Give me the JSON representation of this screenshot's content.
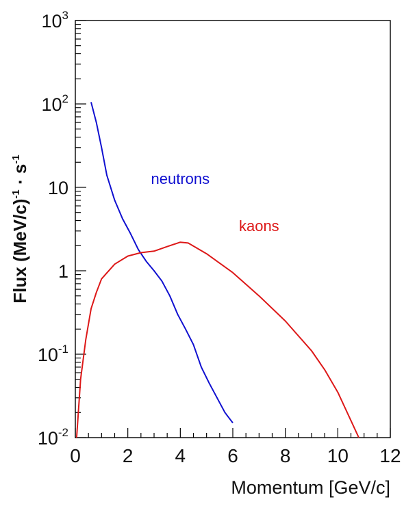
{
  "chart_data": {
    "type": "line",
    "xlabel": "Momentum [GeV/c]",
    "ylabel": {
      "parts": [
        "Flux (MeV/c)",
        "-1",
        " · s",
        "-1"
      ]
    },
    "xlim": [
      0,
      12
    ],
    "ylim": [
      0.01,
      1000
    ],
    "yscale": "log",
    "x_ticks": [
      "0",
      "2",
      "4",
      "6",
      "8",
      "10",
      "12"
    ],
    "y_ticks": [
      {
        "value": 0.01,
        "base": "10",
        "exp": "-2"
      },
      {
        "value": 0.1,
        "base": "10",
        "exp": "-1"
      },
      {
        "value": 1,
        "base": "1",
        "exp": ""
      },
      {
        "value": 10,
        "base": "10",
        "exp": ""
      },
      {
        "value": 100,
        "base": "10",
        "exp": "2"
      },
      {
        "value": 1000,
        "base": "10",
        "exp": "3"
      }
    ],
    "grid": false,
    "series": [
      {
        "name": "neutrons",
        "color": "#1010d0",
        "x": [
          0.6,
          0.8,
          1.0,
          1.2,
          1.5,
          1.8,
          2.1,
          2.4,
          2.7,
          3.0,
          3.3,
          3.6,
          3.9,
          4.2,
          4.5,
          4.8,
          5.1,
          5.4,
          5.7,
          6.0
        ],
        "y": [
          105,
          60,
          30,
          14,
          7,
          4.2,
          2.8,
          1.8,
          1.3,
          1.0,
          0.75,
          0.5,
          0.3,
          0.2,
          0.13,
          0.07,
          0.045,
          0.03,
          0.02,
          0.015
        ]
      },
      {
        "name": "kaons",
        "color": "#dd1818",
        "x": [
          0.05,
          0.2,
          0.4,
          0.6,
          0.8,
          1.0,
          1.5,
          2.0,
          2.5,
          3.0,
          3.5,
          4.0,
          4.3,
          5.0,
          6.0,
          7.0,
          8.0,
          9.0,
          9.5,
          10.0,
          10.5,
          10.8
        ],
        "y": [
          0.01,
          0.05,
          0.15,
          0.35,
          0.55,
          0.8,
          1.2,
          1.5,
          1.65,
          1.72,
          1.95,
          2.2,
          2.15,
          1.6,
          0.95,
          0.5,
          0.25,
          0.11,
          0.065,
          0.035,
          0.016,
          0.01
        ]
      }
    ],
    "annotations": [
      {
        "text": "neutrons",
        "x": 4.0,
        "y": 11,
        "color": "#1010d0"
      },
      {
        "text": "kaons",
        "x": 7.0,
        "y": 3.0,
        "color": "#dd1818"
      }
    ]
  }
}
